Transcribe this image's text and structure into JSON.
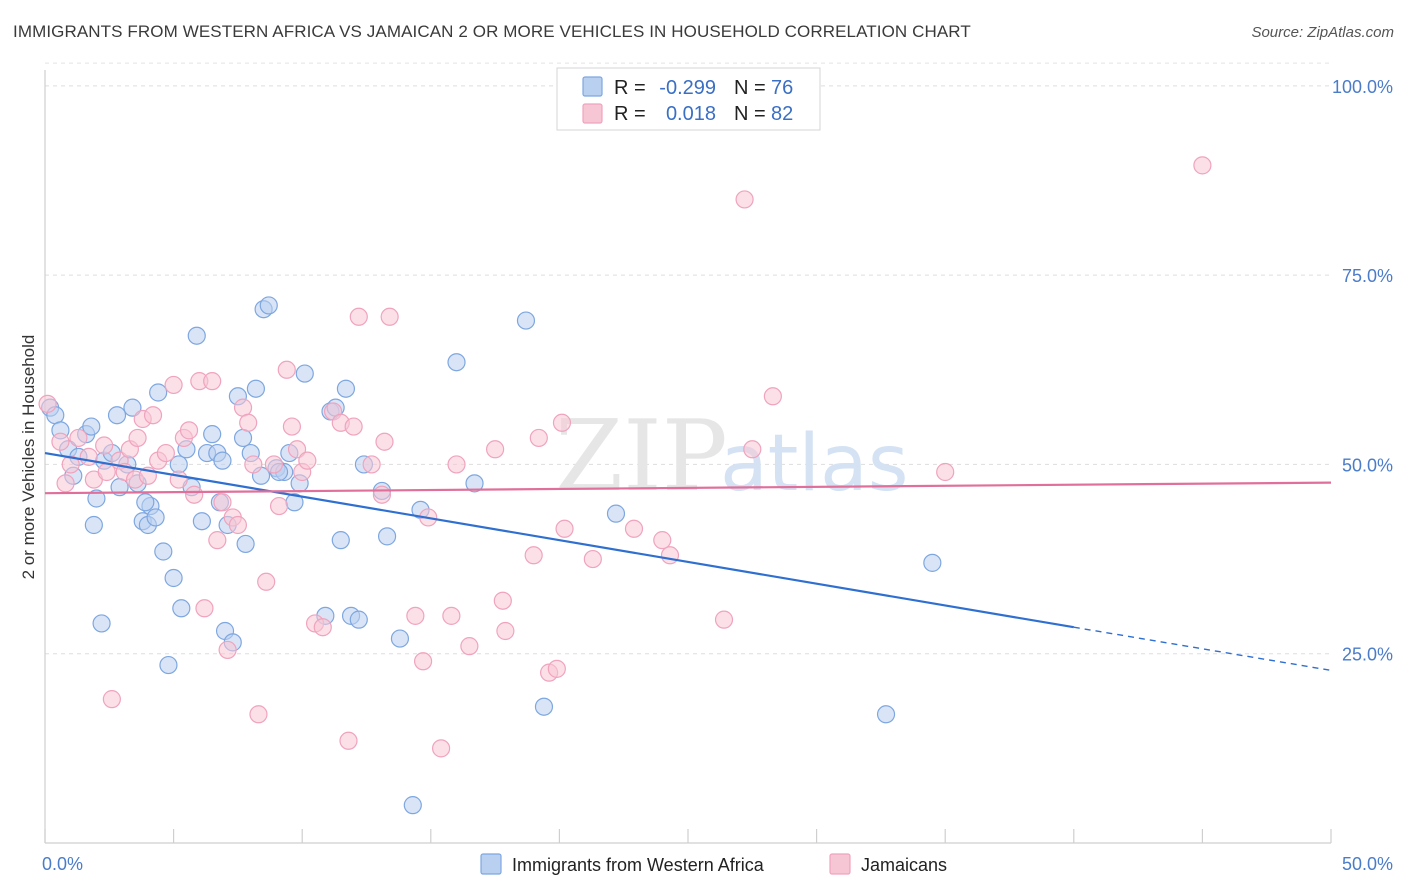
{
  "header": {
    "title": "IMMIGRANTS FROM WESTERN AFRICA VS JAMAICAN 2 OR MORE VEHICLES IN HOUSEHOLD CORRELATION CHART",
    "source": "Source: ZipAtlas.com"
  },
  "watermark": {
    "zip": "ZIP",
    "atlas": "atlas"
  },
  "chart_data": {
    "type": "scatter",
    "ylabel": "2 or more Vehicles in Household",
    "xlim": [
      0,
      50
    ],
    "ylim": [
      0,
      105
    ],
    "y_ticks": [
      {
        "value": 100,
        "label": "100.0%"
      },
      {
        "value": 75,
        "label": "75.0%"
      },
      {
        "value": 50,
        "label": "50.0%"
      },
      {
        "value": 25,
        "label": "25.0%"
      }
    ],
    "x_tick_labels": {
      "min": "0.0%",
      "max": "50.0%"
    },
    "grid": "horizontal dashed",
    "legend_placement": "bottom",
    "stats": [
      {
        "r_label": "R =",
        "r_value": "-0.299",
        "n_label": "N =",
        "n_value": "76"
      },
      {
        "r_label": "R =",
        "r_value": "0.018",
        "n_label": "N =",
        "n_value": "82"
      }
    ],
    "series": [
      {
        "name": "Immigrants from Western Africa",
        "color": "#7ea7e0",
        "fill": "#b9d0f1",
        "line_color": "#2f6fcf",
        "trend": {
          "x0": 0,
          "y0": 51.5,
          "x1": 40,
          "y1": 28.5,
          "dash_to_x": 50,
          "dash_to_y": 22.8
        },
        "points": [
          [
            0.2,
            57.5
          ],
          [
            0.4,
            56.5
          ],
          [
            0.6,
            54.5
          ],
          [
            0.9,
            52.0
          ],
          [
            1.1,
            48.5
          ],
          [
            1.3,
            51.0
          ],
          [
            1.6,
            54.0
          ],
          [
            1.8,
            55.0
          ],
          [
            2.0,
            45.5
          ],
          [
            1.9,
            42.0
          ],
          [
            2.3,
            50.5
          ],
          [
            2.6,
            51.5
          ],
          [
            2.8,
            56.5
          ],
          [
            2.9,
            47.0
          ],
          [
            3.2,
            50.0
          ],
          [
            3.4,
            57.5
          ],
          [
            3.6,
            47.5
          ],
          [
            3.8,
            42.5
          ],
          [
            4.0,
            42.0
          ],
          [
            4.1,
            44.5
          ],
          [
            4.3,
            43.0
          ],
          [
            4.4,
            59.5
          ],
          [
            4.6,
            38.5
          ],
          [
            4.8,
            23.5
          ],
          [
            5.0,
            35.0
          ],
          [
            5.2,
            50.0
          ],
          [
            5.3,
            31.0
          ],
          [
            5.5,
            52.0
          ],
          [
            5.7,
            47.0
          ],
          [
            5.9,
            67.0
          ],
          [
            6.1,
            42.5
          ],
          [
            6.3,
            51.5
          ],
          [
            6.5,
            54.0
          ],
          [
            6.7,
            51.5
          ],
          [
            6.8,
            45.0
          ],
          [
            7.0,
            28.0
          ],
          [
            7.1,
            42.0
          ],
          [
            7.3,
            26.5
          ],
          [
            7.5,
            59.0
          ],
          [
            7.7,
            53.5
          ],
          [
            7.8,
            39.5
          ],
          [
            8.0,
            51.5
          ],
          [
            8.2,
            60.0
          ],
          [
            8.4,
            48.5
          ],
          [
            8.5,
            70.5
          ],
          [
            8.7,
            71.0
          ],
          [
            9.0,
            49.5
          ],
          [
            9.3,
            49.0
          ],
          [
            9.5,
            51.5
          ],
          [
            9.7,
            45.0
          ],
          [
            9.9,
            47.5
          ],
          [
            10.1,
            62.0
          ],
          [
            10.9,
            30.0
          ],
          [
            11.1,
            57.0
          ],
          [
            11.3,
            57.5
          ],
          [
            11.5,
            40.0
          ],
          [
            11.7,
            60.0
          ],
          [
            11.9,
            30.0
          ],
          [
            12.2,
            29.5
          ],
          [
            12.4,
            50.0
          ],
          [
            13.1,
            46.5
          ],
          [
            13.3,
            40.5
          ],
          [
            13.8,
            27.0
          ],
          [
            14.3,
            5.0
          ],
          [
            14.6,
            44.0
          ],
          [
            16.0,
            63.5
          ],
          [
            16.7,
            47.5
          ],
          [
            18.7,
            69.0
          ],
          [
            19.4,
            18.0
          ],
          [
            22.2,
            43.5
          ],
          [
            34.5,
            37.0
          ],
          [
            32.7,
            17.0
          ],
          [
            2.2,
            29.0
          ],
          [
            3.9,
            45.0
          ],
          [
            6.9,
            50.5
          ],
          [
            9.1,
            49.0
          ]
        ]
      },
      {
        "name": "Jamaicans",
        "color": "#f0a3bd",
        "fill": "#f7c6d5",
        "line_color": "#e0709a",
        "trend": {
          "x0": 0,
          "y0": 46.2,
          "x1": 50,
          "y1": 47.6
        },
        "points": [
          [
            0.1,
            58.0
          ],
          [
            0.6,
            53.0
          ],
          [
            0.8,
            47.5
          ],
          [
            1.0,
            50.0
          ],
          [
            1.3,
            53.5
          ],
          [
            1.7,
            51.0
          ],
          [
            1.9,
            48.0
          ],
          [
            2.3,
            52.5
          ],
          [
            2.4,
            49.0
          ],
          [
            2.6,
            19.0
          ],
          [
            2.9,
            50.5
          ],
          [
            3.1,
            49.0
          ],
          [
            3.3,
            52.0
          ],
          [
            3.5,
            48.0
          ],
          [
            3.6,
            53.5
          ],
          [
            3.8,
            56.0
          ],
          [
            4.0,
            48.5
          ],
          [
            4.2,
            56.5
          ],
          [
            4.4,
            50.5
          ],
          [
            4.7,
            51.5
          ],
          [
            5.0,
            60.5
          ],
          [
            5.2,
            48.0
          ],
          [
            5.4,
            53.5
          ],
          [
            5.6,
            54.5
          ],
          [
            5.8,
            46.0
          ],
          [
            6.0,
            61.0
          ],
          [
            6.2,
            31.0
          ],
          [
            6.5,
            61.0
          ],
          [
            6.7,
            40.0
          ],
          [
            6.9,
            45.0
          ],
          [
            7.1,
            25.5
          ],
          [
            7.3,
            43.0
          ],
          [
            7.5,
            42.0
          ],
          [
            7.7,
            57.5
          ],
          [
            7.9,
            55.5
          ],
          [
            8.1,
            50.0
          ],
          [
            8.3,
            17.0
          ],
          [
            8.6,
            34.5
          ],
          [
            8.9,
            50.0
          ],
          [
            9.1,
            44.5
          ],
          [
            9.4,
            62.5
          ],
          [
            9.6,
            55.0
          ],
          [
            9.8,
            52.0
          ],
          [
            10.0,
            49.0
          ],
          [
            10.2,
            50.5
          ],
          [
            10.5,
            29.0
          ],
          [
            10.8,
            28.5
          ],
          [
            11.2,
            57.0
          ],
          [
            11.5,
            55.5
          ],
          [
            11.8,
            13.5
          ],
          [
            12.0,
            55.0
          ],
          [
            12.2,
            69.5
          ],
          [
            12.7,
            50.0
          ],
          [
            13.1,
            46.0
          ],
          [
            13.2,
            53.0
          ],
          [
            13.4,
            69.5
          ],
          [
            14.4,
            30.0
          ],
          [
            14.7,
            24.0
          ],
          [
            14.9,
            43.0
          ],
          [
            15.8,
            30.0
          ],
          [
            16.0,
            50.0
          ],
          [
            16.5,
            26.0
          ],
          [
            17.5,
            52.0
          ],
          [
            17.8,
            32.0
          ],
          [
            17.9,
            28.0
          ],
          [
            19.0,
            38.0
          ],
          [
            19.2,
            53.5
          ],
          [
            19.6,
            22.5
          ],
          [
            19.9,
            23.0
          ],
          [
            20.1,
            55.5
          ],
          [
            20.2,
            41.5
          ],
          [
            21.3,
            37.5
          ],
          [
            22.9,
            41.5
          ],
          [
            24.0,
            40.0
          ],
          [
            24.3,
            38.0
          ],
          [
            26.4,
            29.5
          ],
          [
            27.2,
            85.0
          ],
          [
            27.5,
            52.0
          ],
          [
            28.3,
            59.0
          ],
          [
            35.0,
            49.0
          ],
          [
            45.0,
            89.5
          ],
          [
            15.4,
            12.5
          ]
        ]
      }
    ]
  }
}
